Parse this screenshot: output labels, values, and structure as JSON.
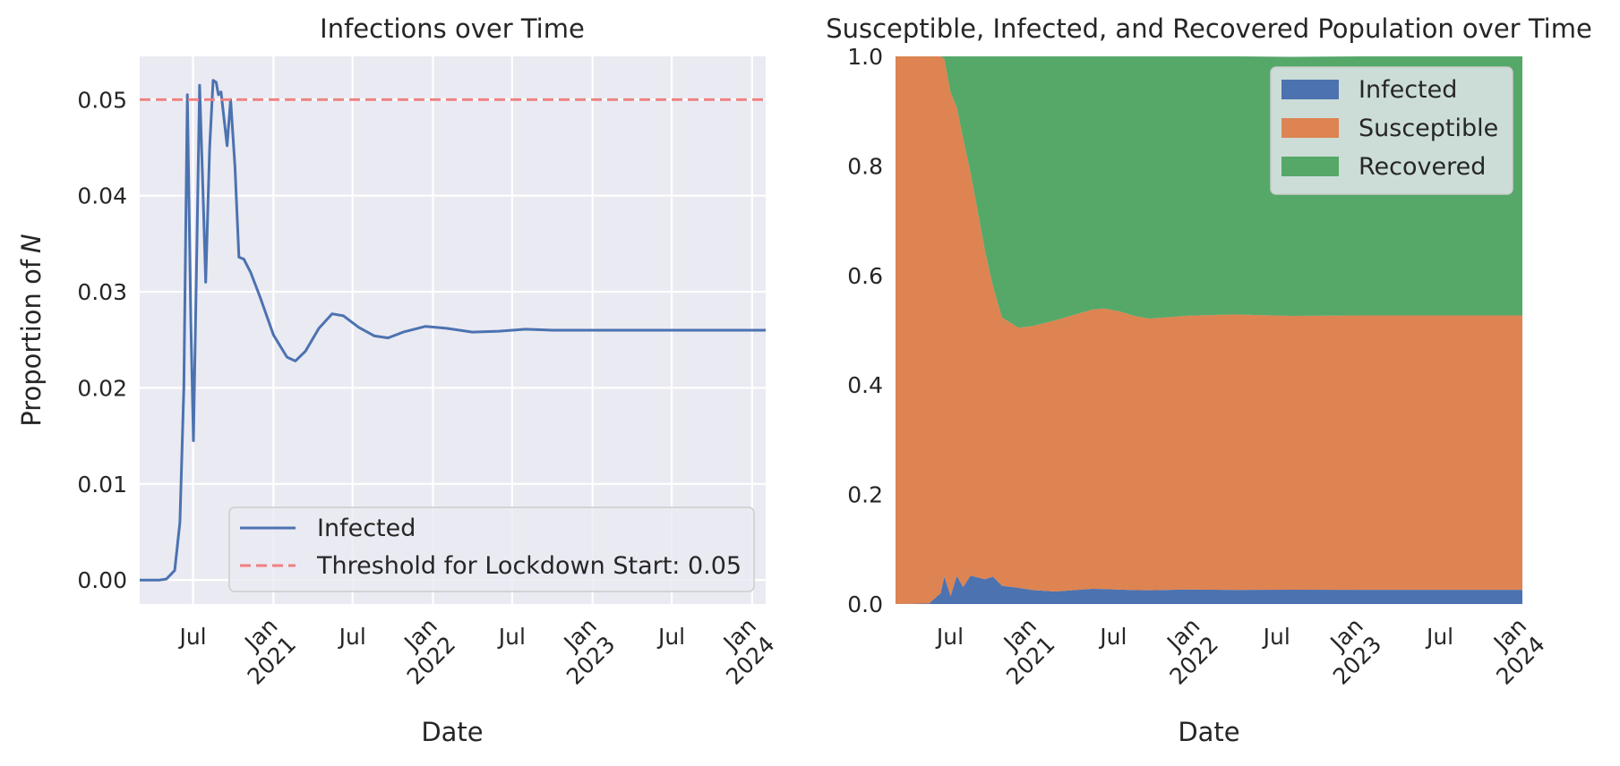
{
  "chart_data": [
    {
      "type": "line",
      "title": "Infections over Time",
      "xlabel": "Date",
      "ylabel": "Proportion of N",
      "ylabel_italic_part": "N",
      "ylabel_prefix": "Proportion of",
      "ylim": [
        -0.0025,
        0.0545
      ],
      "yticks": [
        0.0,
        0.01,
        0.02,
        0.03,
        0.04,
        0.05
      ],
      "ytick_labels": [
        "0.00",
        "0.01",
        "0.02",
        "0.03",
        "0.04",
        "0.05"
      ],
      "xlim": [
        "2020-03-01",
        "2024-02-01"
      ],
      "xticks": [
        {
          "date": "2020-07-01",
          "label": [
            "Jul"
          ]
        },
        {
          "date": "2021-01-01",
          "label": [
            "Jan",
            "2021"
          ]
        },
        {
          "date": "2021-07-01",
          "label": [
            "Jul"
          ]
        },
        {
          "date": "2022-01-01",
          "label": [
            "Jan",
            "2022"
          ]
        },
        {
          "date": "2022-07-01",
          "label": [
            "Jul"
          ]
        },
        {
          "date": "2023-01-01",
          "label": [
            "Jan",
            "2023"
          ]
        },
        {
          "date": "2023-07-01",
          "label": [
            "Jul"
          ]
        },
        {
          "date": "2024-01-01",
          "label": [
            "Jan",
            "2024"
          ]
        }
      ],
      "grid": true,
      "legend_placement": "lower-right",
      "series": [
        {
          "name": "Infected",
          "color": "#4c72b0",
          "points": [
            [
              "2020-03-01",
              0.0
            ],
            [
              "2020-04-15",
              0.0
            ],
            [
              "2020-05-01",
              0.0001
            ],
            [
              "2020-05-20",
              0.001
            ],
            [
              "2020-06-01",
              0.006
            ],
            [
              "2020-06-10",
              0.02
            ],
            [
              "2020-06-18",
              0.0505
            ],
            [
              "2020-06-26",
              0.027
            ],
            [
              "2020-07-02",
              0.0145
            ],
            [
              "2020-07-10",
              0.035
            ],
            [
              "2020-07-16",
              0.0515
            ],
            [
              "2020-07-24",
              0.04
            ],
            [
              "2020-07-30",
              0.031
            ],
            [
              "2020-08-08",
              0.045
            ],
            [
              "2020-08-16",
              0.052
            ],
            [
              "2020-08-23",
              0.0518
            ],
            [
              "2020-08-28",
              0.0505
            ],
            [
              "2020-09-03",
              0.0508
            ],
            [
              "2020-09-10",
              0.048
            ],
            [
              "2020-09-17",
              0.0452
            ],
            [
              "2020-09-25",
              0.05
            ],
            [
              "2020-10-05",
              0.043
            ],
            [
              "2020-10-14",
              0.0336
            ],
            [
              "2020-10-25",
              0.0334
            ],
            [
              "2020-11-10",
              0.032
            ],
            [
              "2020-12-01",
              0.0295
            ],
            [
              "2021-01-01",
              0.0255
            ],
            [
              "2021-02-01",
              0.0232
            ],
            [
              "2021-02-20",
              0.0228
            ],
            [
              "2021-03-15",
              0.0238
            ],
            [
              "2021-04-15",
              0.0262
            ],
            [
              "2021-05-15",
              0.0277
            ],
            [
              "2021-06-10",
              0.0275
            ],
            [
              "2021-07-15",
              0.0263
            ],
            [
              "2021-08-20",
              0.0254
            ],
            [
              "2021-09-20",
              0.0252
            ],
            [
              "2021-10-25",
              0.0258
            ],
            [
              "2021-12-15",
              0.0264
            ],
            [
              "2022-02-01",
              0.0262
            ],
            [
              "2022-04-01",
              0.0258
            ],
            [
              "2022-06-01",
              0.0259
            ],
            [
              "2022-08-01",
              0.0261
            ],
            [
              "2022-10-01",
              0.026
            ],
            [
              "2023-01-01",
              0.026
            ],
            [
              "2023-06-01",
              0.026
            ],
            [
              "2024-02-01",
              0.026
            ]
          ]
        },
        {
          "name": "Threshold for Lockdown Start: 0.05",
          "color": "#f08080",
          "style": "dashed",
          "points": [
            [
              "2020-03-01",
              0.05
            ],
            [
              "2024-02-01",
              0.05
            ]
          ]
        }
      ]
    },
    {
      "type": "area",
      "stacked": true,
      "title": "Susceptible, Infected, and Recovered Population over Time",
      "xlabel": "Date",
      "ylabel": "",
      "ylim": [
        0.0,
        1.0
      ],
      "yticks": [
        0.0,
        0.2,
        0.4,
        0.6,
        0.8,
        1.0
      ],
      "ytick_labels": [
        "0.0",
        "0.2",
        "0.4",
        "0.6",
        "0.8",
        "1.0"
      ],
      "xlim": [
        "2020-03-01",
        "2024-01-01"
      ],
      "xticks": [
        {
          "date": "2020-07-01",
          "label": [
            "Jul"
          ]
        },
        {
          "date": "2021-01-01",
          "label": [
            "Jan",
            "2021"
          ]
        },
        {
          "date": "2021-07-01",
          "label": [
            "Jul"
          ]
        },
        {
          "date": "2022-01-01",
          "label": [
            "Jan",
            "2022"
          ]
        },
        {
          "date": "2022-07-01",
          "label": [
            "Jul"
          ]
        },
        {
          "date": "2023-01-01",
          "label": [
            "Jan",
            "2023"
          ]
        },
        {
          "date": "2023-07-01",
          "label": [
            "Jul"
          ]
        },
        {
          "date": "2024-01-01",
          "label": [
            "Jan",
            "2024"
          ]
        }
      ],
      "grid": false,
      "legend_placement": "upper-right",
      "x": [
        "2020-03-01",
        "2020-05-15",
        "2020-06-10",
        "2020-06-18",
        "2020-07-02",
        "2020-07-16",
        "2020-07-30",
        "2020-08-16",
        "2020-09-17",
        "2020-10-05",
        "2020-10-25",
        "2020-12-01",
        "2021-01-01",
        "2021-02-20",
        "2021-05-15",
        "2021-06-10",
        "2021-07-15",
        "2021-08-20",
        "2021-09-20",
        "2021-12-15",
        "2022-04-01",
        "2022-08-01",
        "2023-01-01",
        "2023-06-01",
        "2024-01-01"
      ],
      "series": [
        {
          "name": "Infected",
          "color": "#4c72b0",
          "values": [
            0.0,
            0.001,
            0.02,
            0.0505,
            0.0145,
            0.0515,
            0.031,
            0.052,
            0.0452,
            0.05,
            0.0334,
            0.0295,
            0.0255,
            0.0228,
            0.0277,
            0.0275,
            0.0263,
            0.0254,
            0.0252,
            0.0264,
            0.0258,
            0.0261,
            0.026,
            0.026,
            0.026
          ]
        },
        {
          "name": "Susceptible",
          "color": "#dd8452",
          "values": [
            1.0,
            0.999,
            0.98,
            0.945,
            0.92,
            0.855,
            0.82,
            0.735,
            0.6,
            0.53,
            0.49,
            0.475,
            0.482,
            0.495,
            0.51,
            0.512,
            0.508,
            0.5,
            0.496,
            0.5,
            0.503,
            0.5,
            0.501,
            0.501,
            0.501
          ]
        },
        {
          "name": "Recovered",
          "color": "#55a868",
          "values": [
            0.0,
            0.0,
            0.0,
            0.0045,
            0.0655,
            0.0935,
            0.149,
            0.213,
            0.3548,
            0.42,
            0.4766,
            0.4955,
            0.4925,
            0.4822,
            0.4623,
            0.4605,
            0.4657,
            0.4746,
            0.4788,
            0.4736,
            0.4712,
            0.4729,
            0.473,
            0.473,
            0.473
          ]
        }
      ]
    }
  ]
}
